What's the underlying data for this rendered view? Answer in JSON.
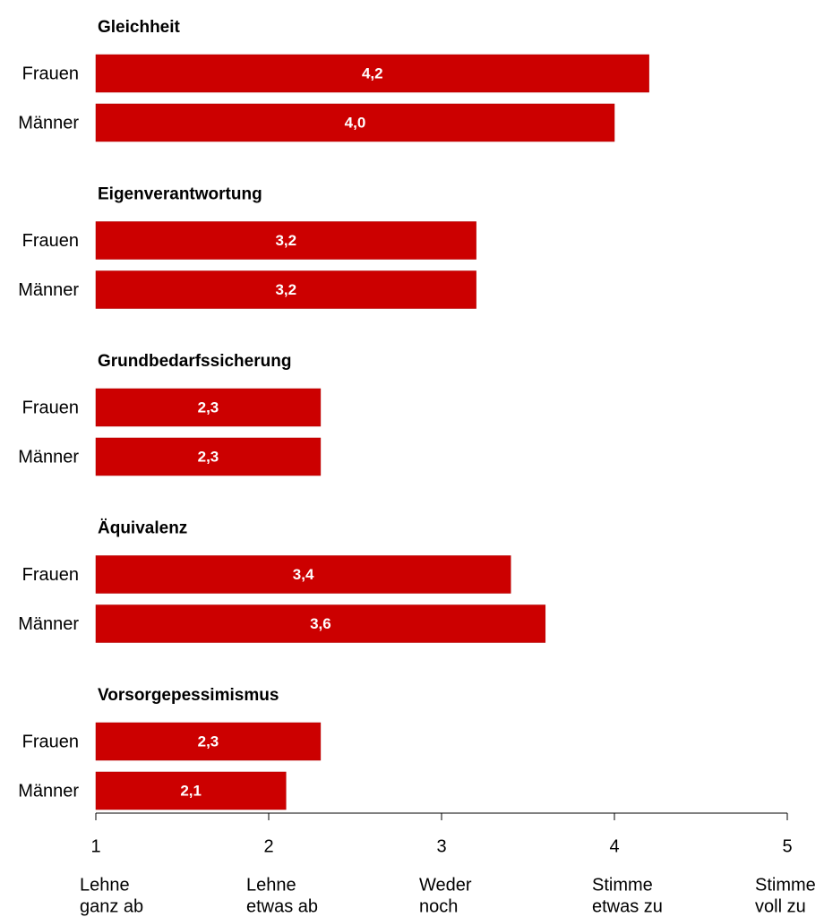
{
  "chart_data": {
    "type": "bar",
    "orientation": "horizontal",
    "bar_color": "#cc0000",
    "xlim": [
      1,
      5
    ],
    "x_ticks": [
      1,
      2,
      3,
      4,
      5
    ],
    "x_tick_labels": [
      "1",
      "2",
      "3",
      "4",
      "5"
    ],
    "scale_labels": [
      [
        "Lehne",
        "ganz ab"
      ],
      [
        "Lehne",
        "etwas ab"
      ],
      [
        "Weder",
        "noch"
      ],
      [
        "Stimme",
        "etwas zu"
      ],
      [
        "Stimme",
        "voll zu"
      ]
    ],
    "groups": [
      {
        "title": "Gleichheit",
        "rows": [
          {
            "label": "Frauen",
            "value": 4.2,
            "display": "4,2"
          },
          {
            "label": "Männer",
            "value": 4.0,
            "display": "4,0"
          }
        ]
      },
      {
        "title": "Eigenverantwortung",
        "rows": [
          {
            "label": "Frauen",
            "value": 3.2,
            "display": "3,2"
          },
          {
            "label": "Männer",
            "value": 3.2,
            "display": "3,2"
          }
        ]
      },
      {
        "title": "Grundbedarfssicherung",
        "rows": [
          {
            "label": "Frauen",
            "value": 2.3,
            "display": "2,3"
          },
          {
            "label": "Männer",
            "value": 2.3,
            "display": "2,3"
          }
        ]
      },
      {
        "title": "Äquivalenz",
        "rows": [
          {
            "label": "Frauen",
            "value": 3.4,
            "display": "3,4"
          },
          {
            "label": "Männer",
            "value": 3.6,
            "display": "3,6"
          }
        ]
      },
      {
        "title": "Vorsorgepessimismus",
        "rows": [
          {
            "label": "Frauen",
            "value": 2.3,
            "display": "2,3"
          },
          {
            "label": "Männer",
            "value": 2.1,
            "display": "2,1"
          }
        ]
      }
    ]
  }
}
